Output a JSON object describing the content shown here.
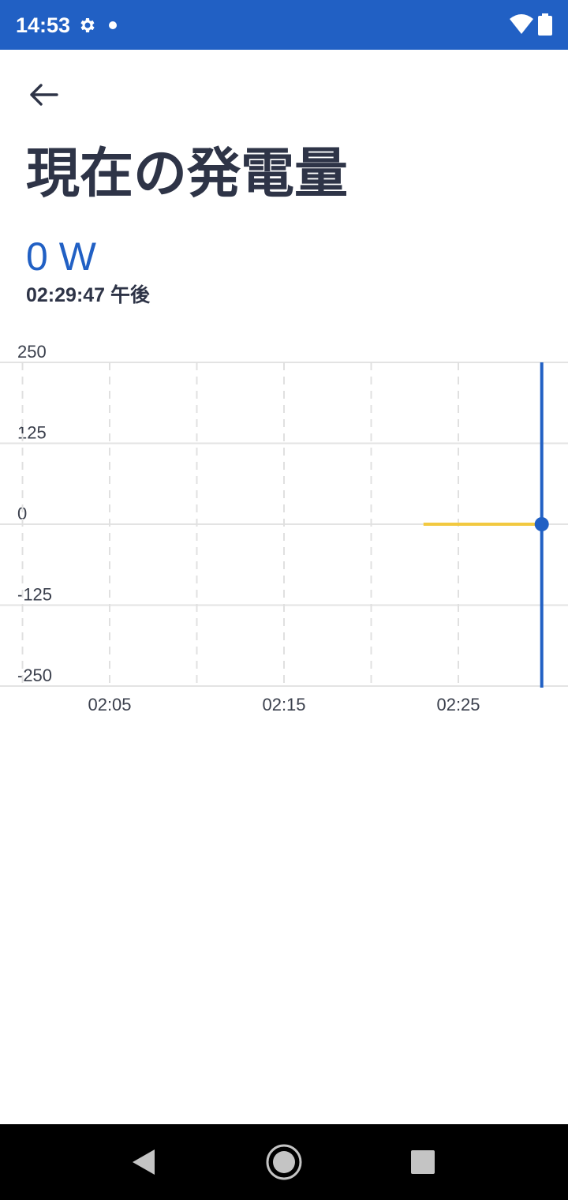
{
  "status_bar": {
    "time": "14:53",
    "background": "#2160c4",
    "icons": [
      "gear-icon",
      "notification-dot-icon",
      "wifi-icon",
      "battery-icon"
    ]
  },
  "header": {
    "back_icon": "arrow-left-icon",
    "title": "現在の発電量"
  },
  "reading": {
    "value": "0 W",
    "timestamp": "02:29:47 午後"
  },
  "chart_data": {
    "type": "line",
    "yticks": [
      "250",
      "125",
      "0",
      "-125",
      "-250"
    ],
    "ylim": [
      -250,
      250
    ],
    "xticks": [
      "02:05",
      "02:15",
      "02:25"
    ],
    "series": [
      {
        "color": "#f2c940",
        "x": [
          "02:23",
          "02:29:47"
        ],
        "values": [
          0,
          0
        ]
      }
    ],
    "cursor": {
      "x": "02:29:47",
      "value": 0,
      "color": "#2160c4"
    },
    "grid": true
  },
  "nav_bar": {
    "icons": [
      "back-triangle-icon",
      "home-circle-icon",
      "recents-square-icon"
    ]
  }
}
